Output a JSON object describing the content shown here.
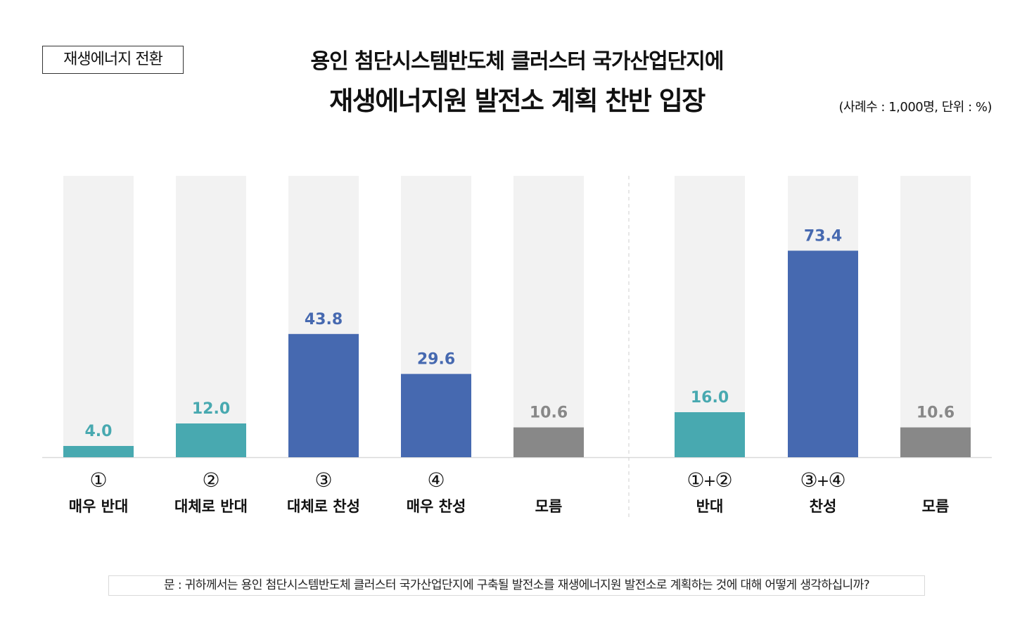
{
  "tag": "재생에너지 전환",
  "title_line1": "용인 첨단시스템반도체 클러스터 국가산업단지에",
  "title_line2": "재생에너지원 발전소 계획 찬반 입장",
  "unit_note": "(사례수 : 1,000명, 단위 : %)",
  "question": "문 : 귀하께서는 용인 첨단시스템반도체 클러스터 국가산업단지에 구축될 발전소를 재생에너지원 발전소로 계획하는 것에 대해 어떻게 생각하십니까?",
  "colors": {
    "oppose": "#48a9b0",
    "support": "#4669b0",
    "unknown": "#888888",
    "track": "#f2f2f2",
    "baseline": "#d9d9d9"
  },
  "chart_data": {
    "type": "bar",
    "ylim": [
      0,
      100
    ],
    "grid": false,
    "groups": [
      {
        "bars": [
          {
            "num": "①",
            "label": "매우 반대",
            "value": 4.0,
            "display": "4.0",
            "color_key": "oppose"
          },
          {
            "num": "②",
            "label": "대체로 반대",
            "value": 12.0,
            "display": "12.0",
            "color_key": "oppose"
          },
          {
            "num": "③",
            "label": "대체로 찬성",
            "value": 43.8,
            "display": "43.8",
            "color_key": "support"
          },
          {
            "num": "④",
            "label": "매우 찬성",
            "value": 29.6,
            "display": "29.6",
            "color_key": "support"
          },
          {
            "num": "",
            "label": "모름",
            "value": 10.6,
            "display": "10.6",
            "color_key": "unknown"
          }
        ]
      },
      {
        "bars": [
          {
            "num": "①+②",
            "label": "반대",
            "value": 16.0,
            "display": "16.0",
            "color_key": "oppose"
          },
          {
            "num": "③+④",
            "label": "찬성",
            "value": 73.4,
            "display": "73.4",
            "color_key": "support"
          },
          {
            "num": "",
            "label": "모름",
            "value": 10.6,
            "display": "10.6",
            "color_key": "unknown"
          }
        ]
      }
    ]
  }
}
